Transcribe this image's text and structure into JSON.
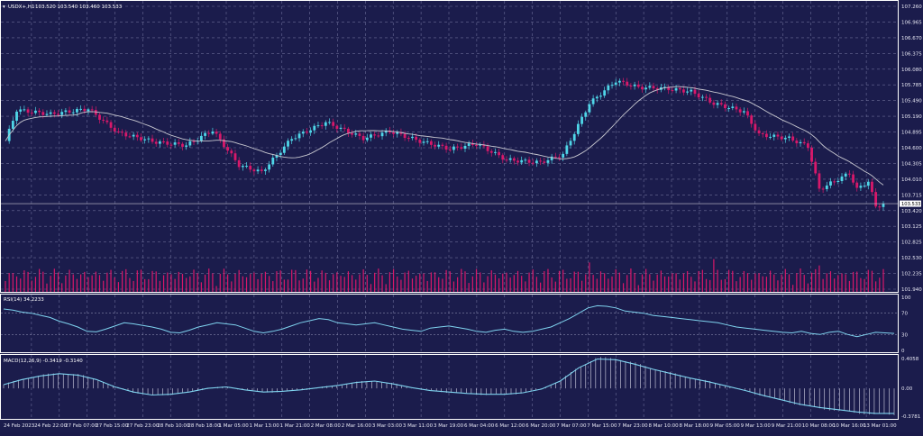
{
  "header": {
    "symbol": "USDX+,H1",
    "ohlc": "103.520 103.540 103.460 103.533"
  },
  "colors": {
    "background": "#1b1c4c",
    "bull": "#4fd6e8",
    "bear": "#d8186a",
    "ma": "#c8c8d0",
    "volume": "#d8186a",
    "rsi": "#7fd3ef",
    "macd_signal": "#7fd3ef",
    "macd_hist": "#d8d8e8",
    "grid": "#8e90b8"
  },
  "price_panel": {
    "ticks": [
      "107.260",
      "106.965",
      "106.670",
      "106.375",
      "106.080",
      "105.785",
      "105.490",
      "105.190",
      "104.895",
      "104.600",
      "104.305",
      "104.010",
      "103.715",
      "103.420",
      "103.125",
      "102.825",
      "102.530",
      "102.235",
      "101.940"
    ],
    "current_price": "103.533"
  },
  "rsi_panel": {
    "title": "RSI(14) 34.2233",
    "ticks": [
      "100",
      "70",
      "30",
      "0"
    ]
  },
  "macd_panel": {
    "title": "MACD(12,26,9) -0.3419 -0.3140",
    "ticks": [
      "0.4058",
      "0.00",
      "-0.3781"
    ]
  },
  "time_axis": {
    "labels": [
      "24 Feb 2023",
      "24 Feb 22:00",
      "27 Feb 07:00",
      "27 Feb 15:00",
      "27 Feb 23:00",
      "28 Feb 10:00",
      "28 Feb 18:00",
      "1 Mar 05:00",
      "1 Mar 13:00",
      "1 Mar 21:00",
      "2 Mar 08:00",
      "2 Mar 16:00",
      "3 Mar 03:00",
      "3 Mar 11:00",
      "3 Mar 19:00",
      "6 Mar 04:00",
      "6 Mar 12:00",
      "6 Mar 20:00",
      "7 Mar 07:00",
      "7 Mar 15:00",
      "7 Mar 23:00",
      "8 Mar 10:00",
      "8 Mar 18:00",
      "9 Mar 05:00",
      "9 Mar 13:00",
      "9 Mar 21:00",
      "10 Mar 08:00",
      "10 Mar 16:00",
      "13 Mar 01:00"
    ]
  },
  "chart_data": {
    "type": "line",
    "title": "USDX+,H1",
    "anchors": [
      {
        "i": 0,
        "p": 104.7
      },
      {
        "i": 3,
        "p": 105.28
      },
      {
        "i": 12,
        "p": 105.2
      },
      {
        "i": 22,
        "p": 105.3
      },
      {
        "i": 30,
        "p": 104.85
      },
      {
        "i": 40,
        "p": 104.68
      },
      {
        "i": 48,
        "p": 104.62
      },
      {
        "i": 55,
        "p": 104.9
      },
      {
        "i": 62,
        "p": 104.25
      },
      {
        "i": 68,
        "p": 104.12
      },
      {
        "i": 76,
        "p": 104.75
      },
      {
        "i": 85,
        "p": 105.05
      },
      {
        "i": 95,
        "p": 104.75
      },
      {
        "i": 102,
        "p": 104.88
      },
      {
        "i": 110,
        "p": 104.7
      },
      {
        "i": 118,
        "p": 104.55
      },
      {
        "i": 125,
        "p": 104.65
      },
      {
        "i": 133,
        "p": 104.35
      },
      {
        "i": 142,
        "p": 104.3
      },
      {
        "i": 148,
        "p": 104.45
      },
      {
        "i": 155,
        "p": 105.4
      },
      {
        "i": 162,
        "p": 105.82
      },
      {
        "i": 168,
        "p": 105.7
      },
      {
        "i": 175,
        "p": 105.68
      },
      {
        "i": 182,
        "p": 105.62
      },
      {
        "i": 188,
        "p": 105.4
      },
      {
        "i": 196,
        "p": 105.25
      },
      {
        "i": 200,
        "p": 104.82
      },
      {
        "i": 208,
        "p": 104.75
      },
      {
        "i": 213,
        "p": 104.6
      },
      {
        "i": 216,
        "p": 103.8
      },
      {
        "i": 220,
        "p": 103.95
      },
      {
        "i": 224,
        "p": 104.1
      },
      {
        "i": 226,
        "p": 103.8
      },
      {
        "i": 229,
        "p": 103.95
      },
      {
        "i": 231,
        "p": 103.48
      },
      {
        "i": 233,
        "p": 103.53
      }
    ],
    "ma_period": 20,
    "rsi_series": [
      78,
      76,
      72,
      70,
      66,
      62,
      55,
      50,
      44,
      36,
      35,
      40,
      46,
      52,
      50,
      47,
      44,
      40,
      34,
      33,
      38,
      44,
      48,
      52,
      50,
      48,
      42,
      36,
      33,
      36,
      40,
      46,
      52,
      56,
      60,
      58,
      52,
      50,
      48,
      50,
      52,
      48,
      44,
      40,
      38,
      36,
      42,
      44,
      46,
      43,
      40,
      36,
      34,
      38,
      40,
      36,
      34,
      36,
      40,
      44,
      52,
      60,
      70,
      80,
      84,
      83,
      80,
      74,
      72,
      70,
      66,
      64,
      62,
      60,
      58,
      56,
      54,
      52,
      48,
      44,
      42,
      40,
      38,
      36,
      34,
      33,
      36,
      32,
      30,
      34,
      36,
      30,
      26,
      30,
      34,
      33,
      32
    ],
    "macd_series": [
      0.05,
      0.12,
      0.17,
      0.2,
      0.18,
      0.12,
      0.02,
      -0.05,
      -0.09,
      -0.08,
      -0.05,
      0.0,
      0.02,
      -0.02,
      -0.05,
      -0.04,
      -0.02,
      0.01,
      0.04,
      0.08,
      0.1,
      0.06,
      0.01,
      -0.03,
      -0.05,
      -0.07,
      -0.08,
      -0.08,
      -0.06,
      -0.01,
      0.1,
      0.28,
      0.4,
      0.39,
      0.33,
      0.26,
      0.2,
      0.14,
      0.09,
      0.03,
      -0.03,
      -0.1,
      -0.16,
      -0.22,
      -0.26,
      -0.29,
      -0.32,
      -0.34,
      -0.34
    ]
  }
}
